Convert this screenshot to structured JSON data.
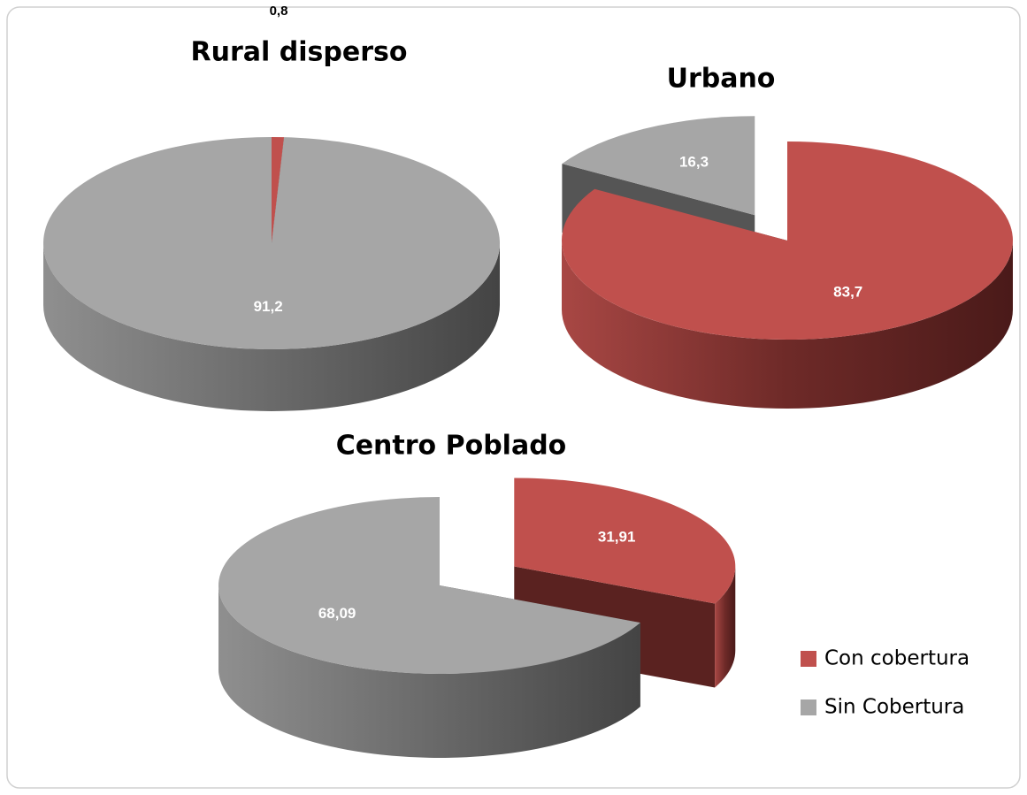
{
  "chart_data": [
    {
      "type": "pie3d",
      "title": "Rural disperso",
      "categories": [
        "Con cobertura",
        "Sin Cobertura"
      ],
      "values": [
        0.8,
        91.2
      ],
      "value_labels": [
        "0,8",
        "91,2"
      ],
      "colors": [
        "#c0504d",
        "#a6a6a6"
      ],
      "explode": [
        false,
        false
      ]
    },
    {
      "type": "pie3d",
      "title": "Urbano",
      "categories": [
        "Con cobertura",
        "Sin Cobertura"
      ],
      "values": [
        83.7,
        16.3
      ],
      "value_labels": [
        "83,7",
        "16,3"
      ],
      "colors": [
        "#c0504d",
        "#a6a6a6"
      ],
      "explode": [
        false,
        true
      ]
    },
    {
      "type": "pie3d",
      "title": "Centro Poblado",
      "categories": [
        "Con cobertura",
        "Sin Cobertura"
      ],
      "values": [
        31.91,
        68.09
      ],
      "value_labels": [
        "31,91",
        "68,09"
      ],
      "colors": [
        "#c0504d",
        "#a6a6a6"
      ],
      "explode": [
        true,
        false
      ],
      "legend": "lower right"
    }
  ]
}
